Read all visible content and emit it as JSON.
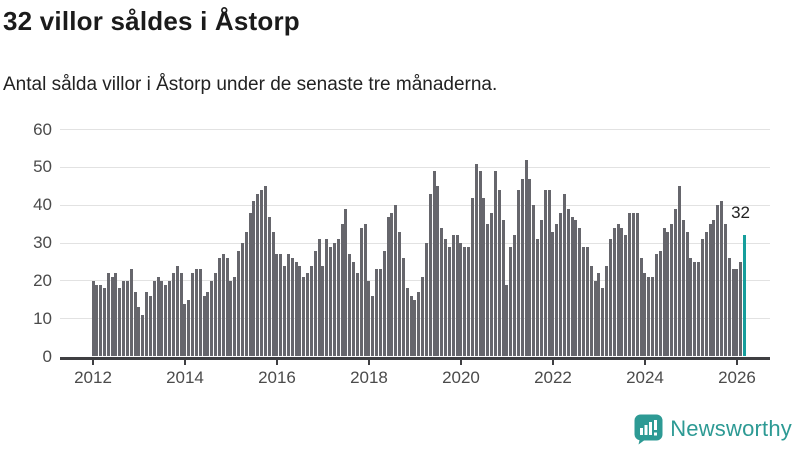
{
  "header": {
    "title": "32 villor såldes i Åstorp",
    "subtitle": "Antal sålda villor i Åstorp under de senaste tre månaderna."
  },
  "chart_data": {
    "type": "bar",
    "title": "32 villor såldes i Åstorp",
    "xlabel": "",
    "ylabel": "",
    "ylim": [
      0,
      60
    ],
    "y_ticks": [
      0,
      10,
      20,
      30,
      40,
      50,
      60
    ],
    "x_tick_labels": [
      "2012",
      "2014",
      "2016",
      "2018",
      "2020",
      "2022",
      "2024",
      "2026"
    ],
    "grid": true,
    "legend_position": "none",
    "start_month": "2012-01",
    "months_per_bar_note": "rolling 3-month sales count, monthly bars",
    "values": [
      20,
      19,
      19,
      18,
      22,
      21,
      22,
      18,
      20,
      20,
      23,
      17,
      13,
      11,
      17,
      16,
      20,
      21,
      20,
      19,
      20,
      22,
      24,
      22,
      14,
      15,
      22,
      23,
      23,
      16,
      17,
      20,
      22,
      26,
      27,
      26,
      20,
      21,
      28,
      30,
      33,
      38,
      41,
      43,
      44,
      45,
      37,
      33,
      27,
      27,
      24,
      27,
      26,
      25,
      24,
      21,
      22,
      24,
      28,
      31,
      24,
      31,
      29,
      30,
      31,
      35,
      39,
      27,
      25,
      22,
      34,
      35,
      20,
      16,
      23,
      23,
      28,
      37,
      38,
      40,
      33,
      26,
      18,
      16,
      15,
      17,
      21,
      30,
      43,
      49,
      45,
      34,
      31,
      29,
      32,
      32,
      30,
      29,
      29,
      42,
      51,
      49,
      42,
      35,
      38,
      49,
      44,
      36,
      19,
      29,
      32,
      44,
      47,
      52,
      47,
      40,
      31,
      36,
      44,
      44,
      33,
      35,
      38,
      43,
      39,
      37,
      36,
      34,
      29,
      29,
      24,
      20,
      22,
      18,
      24,
      31,
      34,
      35,
      34,
      32,
      38,
      38,
      38,
      26,
      22,
      21,
      21,
      27,
      28,
      34,
      33,
      35,
      39,
      45,
      36,
      33,
      26,
      25,
      25,
      31,
      33,
      35,
      36,
      40,
      41,
      35,
      26,
      23,
      23,
      25,
      32
    ],
    "highlight_last_value": 32,
    "annotation_label": "32",
    "bar_color": "#66666c",
    "highlight_color": "#169e9c"
  },
  "footer": {
    "logo_text": "Newsworthy",
    "logo_color": "#2d9a94",
    "logo_icon": "bar-chart-speech-bubble-icon"
  }
}
